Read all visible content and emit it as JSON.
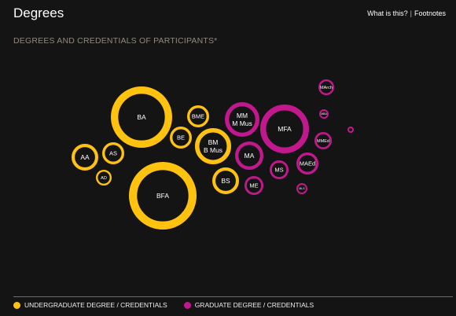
{
  "header": {
    "title": "Degrees",
    "links": {
      "what": "What is this?",
      "separator": "|",
      "footnotes": "Footnotes"
    }
  },
  "chart_data": {
    "type": "bubble",
    "title": "DEGREES AND CREDENTIALS OF PARTICIPANTS*",
    "categories": [
      {
        "key": "undergraduate",
        "label": "UNDERGRADUATE DEGREE / CREDENTIALS",
        "color": "#ffc20e"
      },
      {
        "key": "graduate",
        "label": "GRADUATE DEGREE / CREDENTIALS",
        "color": "#c2188d"
      }
    ],
    "bubbles": [
      {
        "label": "BA",
        "category": "undergraduate",
        "value": 100
      },
      {
        "label": "BFA",
        "category": "undergraduate",
        "value": 118
      },
      {
        "label": "BM\nB Mus",
        "category": "undergraduate",
        "value": 36
      },
      {
        "label": "BS",
        "category": "undergraduate",
        "value": 22
      },
      {
        "label": "BME",
        "category": "undergraduate",
        "value": 12
      },
      {
        "label": "BE",
        "category": "undergraduate",
        "value": 12
      },
      {
        "label": "AA",
        "category": "undergraduate",
        "value": 18
      },
      {
        "label": "AS",
        "category": "undergraduate",
        "value": 13
      },
      {
        "label": "AD",
        "category": "undergraduate",
        "value": 7
      },
      {
        "label": "MFA",
        "category": "graduate",
        "value": 62
      },
      {
        "label": "MM\nM Mus",
        "category": "graduate",
        "value": 30
      },
      {
        "label": "MA",
        "category": "graduate",
        "value": 22
      },
      {
        "label": "MAEd",
        "category": "graduate",
        "value": 12
      },
      {
        "label": "ME",
        "category": "graduate",
        "value": 10
      },
      {
        "label": "MS",
        "category": "graduate",
        "value": 9
      },
      {
        "label": "MMEd",
        "category": "graduate",
        "value": 7
      },
      {
        "label": "MArch",
        "category": "graduate",
        "value": 6
      },
      {
        "label": "MLS",
        "category": "graduate",
        "value": 2.5
      },
      {
        "label": "MBA",
        "category": "graduate",
        "value": 2
      },
      {
        "label": "",
        "category": "graduate",
        "value": 1
      }
    ]
  }
}
